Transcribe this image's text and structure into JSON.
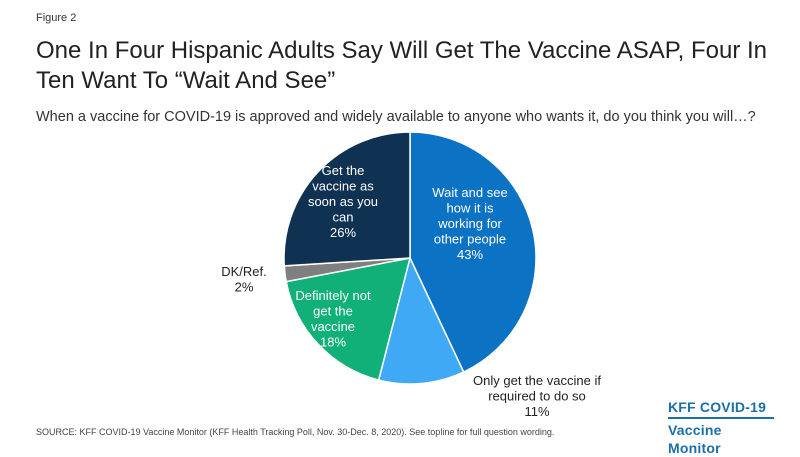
{
  "figure_label": "Figure 2",
  "title": "One In Four Hispanic Adults Say Will Get The Vaccine ASAP, Four In Ten Want To “Wait And See”",
  "source": "SOURCE: KFF COVID-19 Vaccine Monitor (KFF Health Tracking Poll, Nov. 30-Dec. 8, 2020). See topline for full question wording.",
  "brand": {
    "line1": "KFF COVID-19",
    "line2": "Vaccine Monitor"
  },
  "chart_data": {
    "type": "pie",
    "title": "When a vaccine for COVID-19 is approved and widely available to anyone who wants it, do you think you will…?",
    "slices": [
      {
        "label": "Wait and see how it is working for other people",
        "lines": [
          "Wait and see",
          "how it is",
          "working for",
          "other people",
          "43%"
        ],
        "value": 43,
        "color": "#0b72c4",
        "text_color": "#ffffff",
        "label_pos": "inside"
      },
      {
        "label": "Only get the vaccine if required to do so",
        "lines": [
          "Only get the vaccine if",
          "required to do so",
          "11%"
        ],
        "value": 11,
        "color": "#3fa9f5",
        "text_color": "#222222",
        "label_pos": "outside"
      },
      {
        "label": "Definitely not get the vaccine",
        "lines": [
          "Definitely not",
          "get the",
          "vaccine",
          "18%"
        ],
        "value": 18,
        "color": "#11b078",
        "text_color": "#ffffff",
        "label_pos": "inside"
      },
      {
        "label": "DK/Ref.",
        "lines": [
          "DK/Ref.",
          "2%"
        ],
        "value": 2,
        "color": "#7f7f7f",
        "text_color": "#222222",
        "label_pos": "outside"
      },
      {
        "label": "Get the vaccine as soon as you can",
        "lines": [
          "Get the",
          "vaccine as",
          "soon as you",
          "can",
          "26%"
        ],
        "value": 26,
        "color": "#0f3152",
        "text_color": "#ffffff",
        "label_pos": "inside"
      }
    ]
  }
}
